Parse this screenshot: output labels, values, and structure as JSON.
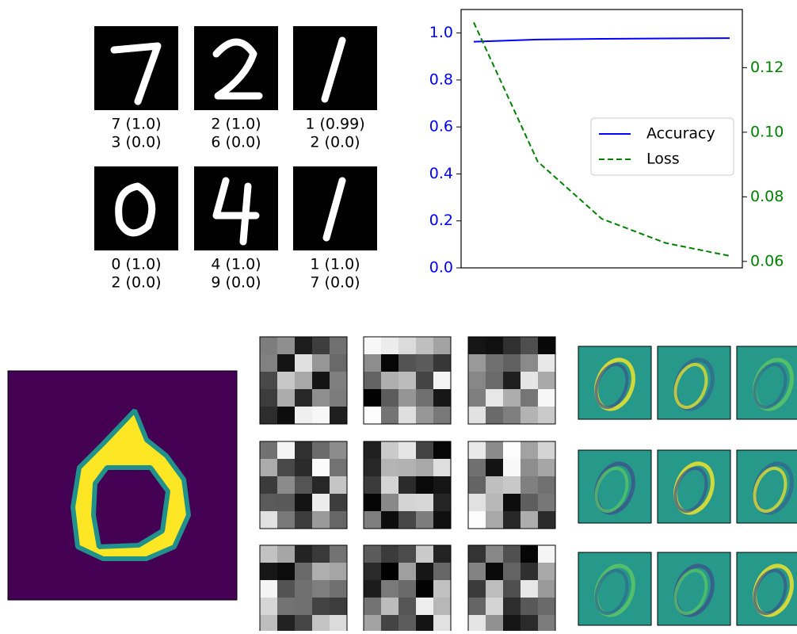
{
  "chart_data": [
    {
      "type": "line",
      "categories": [
        null,
        null,
        null,
        null,
        null
      ],
      "series": [
        {
          "name": "Accuracy",
          "color": "#0000ff",
          "dash": "solid",
          "values": [
            0.963,
            0.972,
            0.975,
            0.977,
            0.978
          ]
        },
        {
          "name": "Loss",
          "color": "#008000",
          "dash": "dashed",
          "axis": "y2",
          "values": [
            0.134,
            0.0909,
            0.0732,
            0.0657,
            0.0617
          ]
        }
      ],
      "ylim": [
        0,
        1.1
      ],
      "yticks": [
        {
          "value": 0,
          "label": "0.0"
        },
        0.2,
        0.4,
        0.6,
        0.8,
        {
          "value": 1,
          "label": "1.0"
        }
      ],
      "ytick_color": "#0000ff",
      "y2lim": [
        0.058,
        0.138
      ],
      "y2ticks": [
        0.06,
        0.08,
        {
          "value": 0.1,
          "label": "0.10"
        },
        0.12
      ],
      "y2tick_color": "#008000",
      "grid": false,
      "legend": "center right"
    }
  ],
  "predictions": [
    [
      "7 (1.0)",
      "3 (0.0)"
    ],
    [
      "2 (1.0)",
      "6 (0.0)"
    ],
    [
      "1 (0.99)",
      "2 (0.0)"
    ],
    [
      "0 (1.0)",
      "2 (0.0)"
    ],
    [
      "4 (1.0)",
      "9 (0.0)"
    ],
    [
      "1 (1.0)",
      "7 (0.0)"
    ]
  ]
}
